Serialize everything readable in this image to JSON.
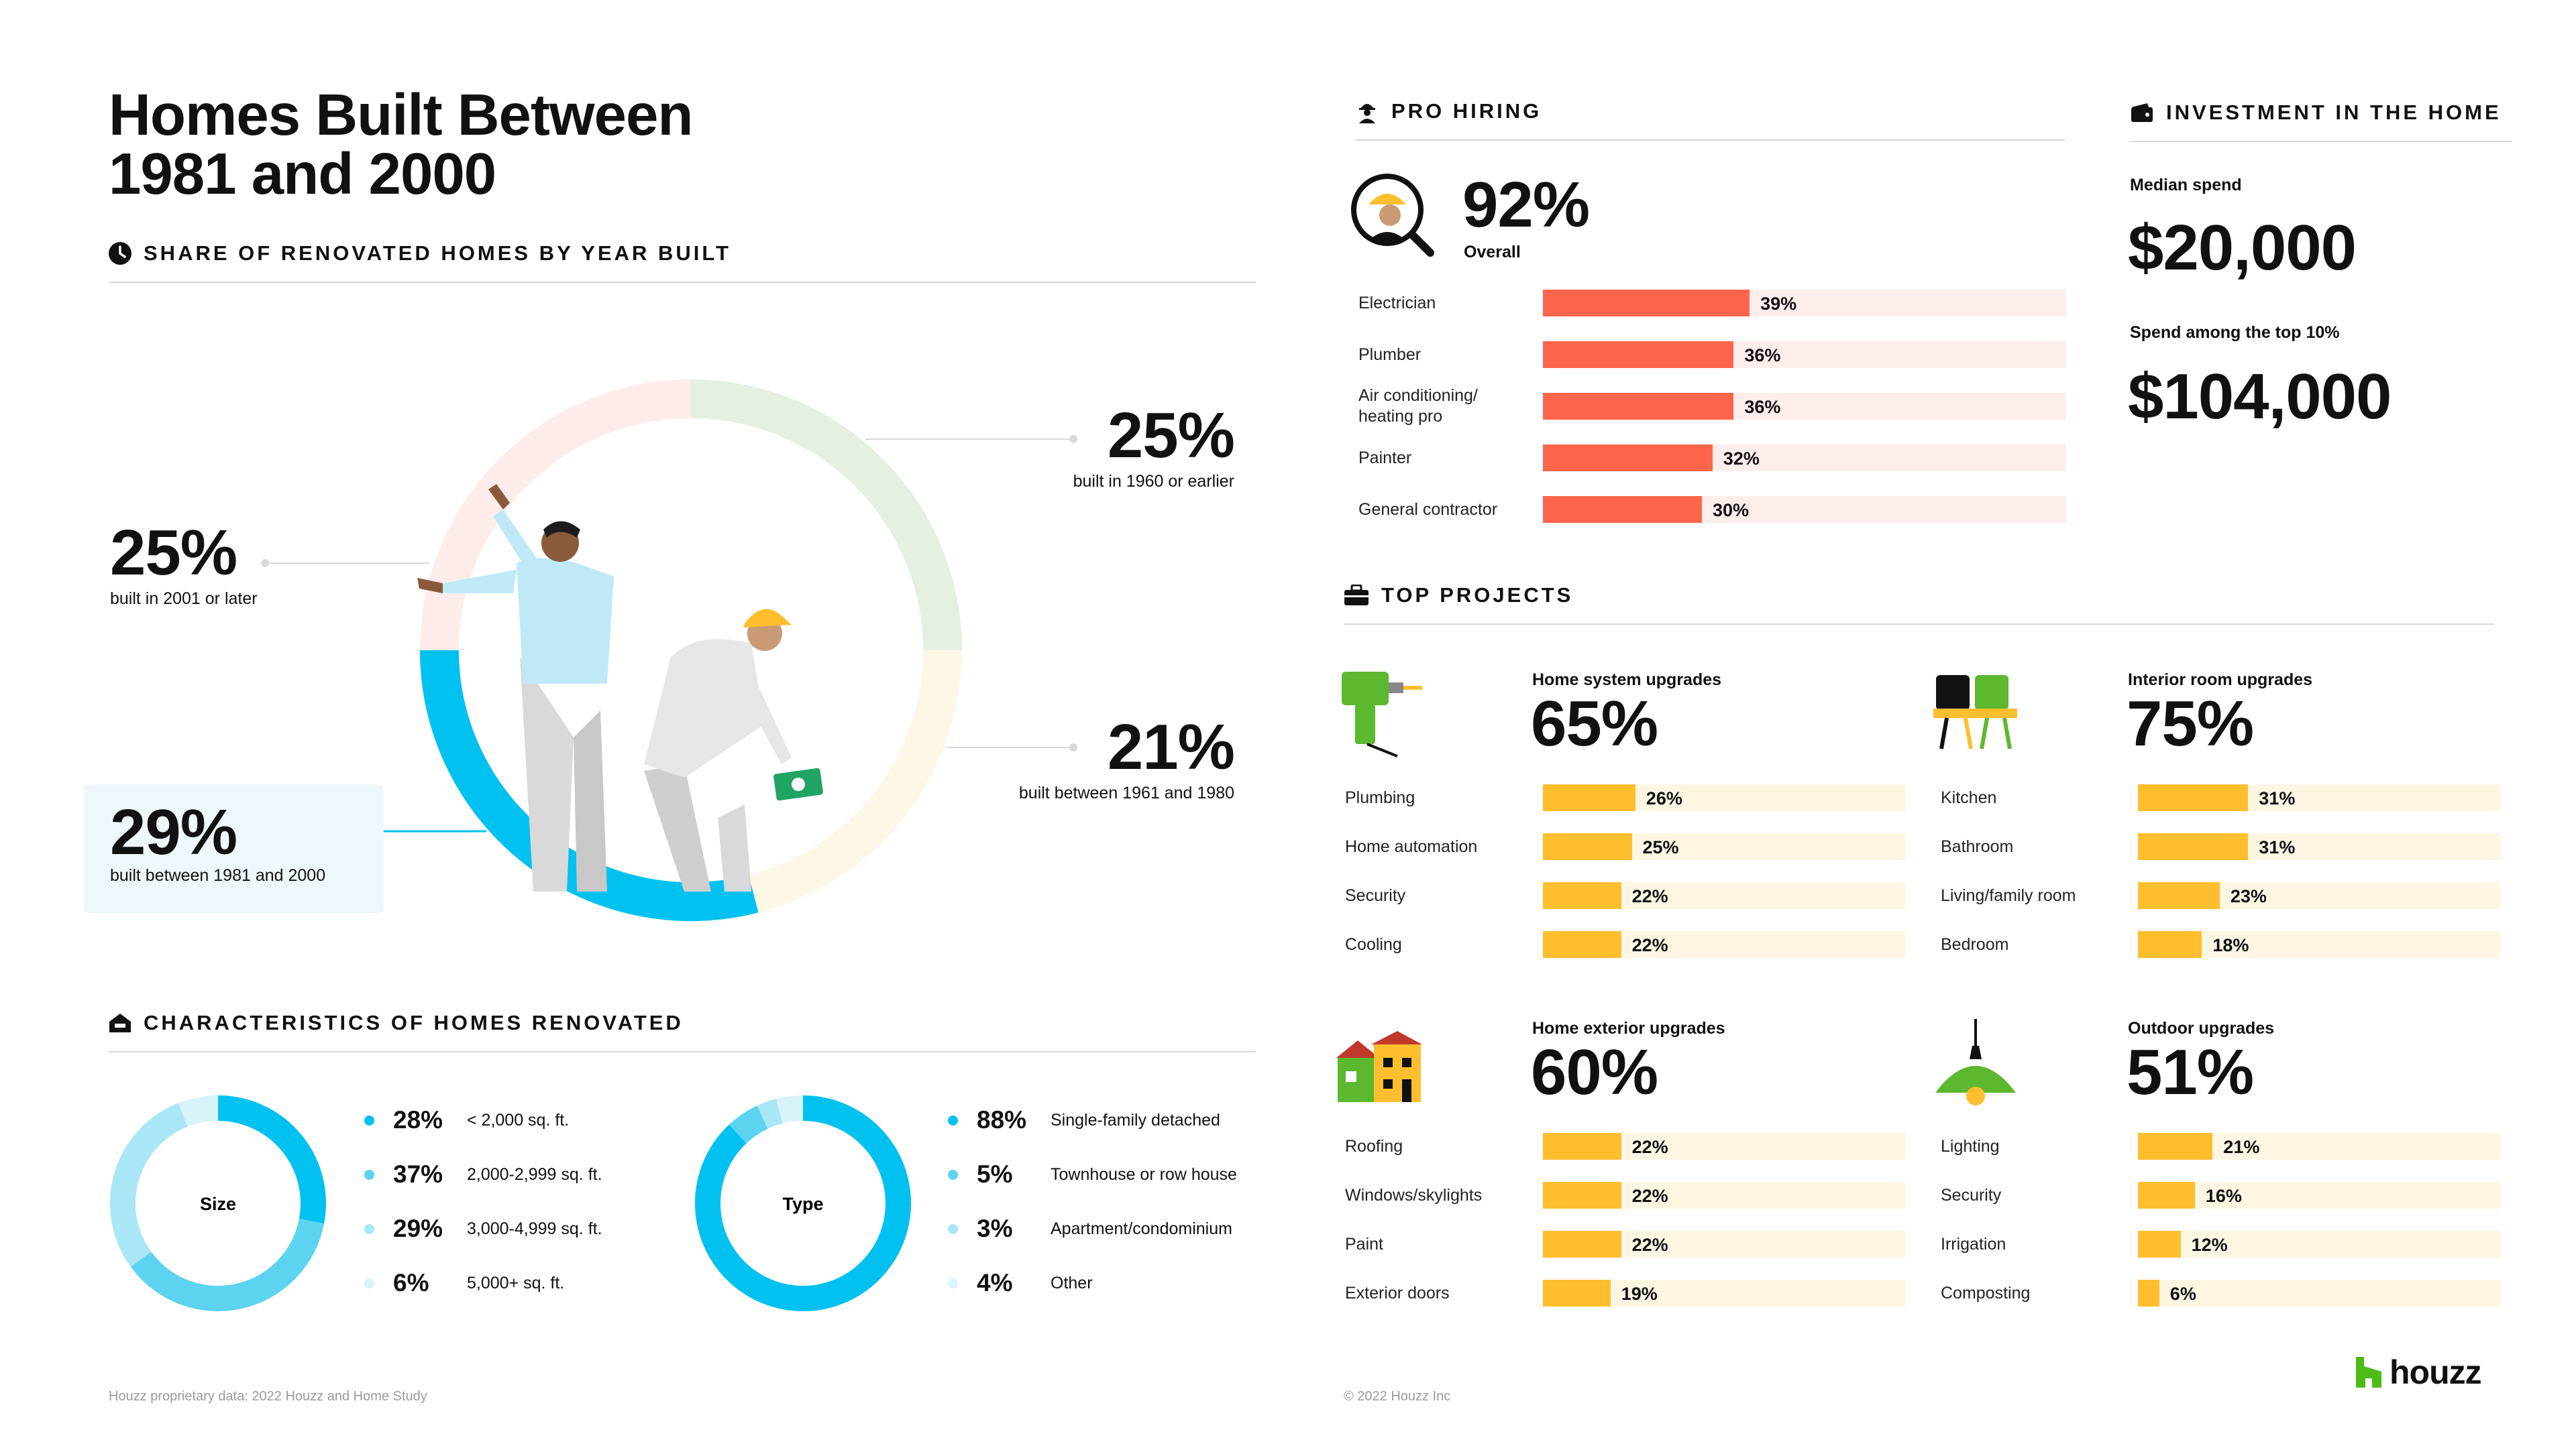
{
  "title_line1": "Homes Built Between",
  "title_line2": "1981 and 2000",
  "share": {
    "heading": "Share of renovated homes by year built",
    "callouts": [
      {
        "value": "25%",
        "label": "built in 1960 or earlier"
      },
      {
        "value": "25%",
        "label": "built in 2001 or later"
      },
      {
        "value": "21%",
        "label": "built between 1961 and 1980"
      },
      {
        "value": "29%",
        "label": "built between 1981 and 2000"
      }
    ],
    "chart_data": {
      "type": "pie",
      "labels": [
        "built in 1960 or earlier",
        "built between 1961 and 1980",
        "built between 1981 and 2000",
        "built in 2001 or later"
      ],
      "values": [
        25,
        21,
        29,
        25
      ],
      "colors": [
        "#e5f0e0",
        "#fdf7e6",
        "#00c1f0",
        "#fdecea"
      ]
    }
  },
  "characteristics": {
    "heading": "Characteristics of homes renovated",
    "size": {
      "center_label": "Size",
      "items": [
        {
          "value": "28%",
          "label": "< 2,000 sq. ft.",
          "color": "#00c1f0"
        },
        {
          "value": "37%",
          "label": "2,000-2,999 sq. ft.",
          "color": "#5dd3f2"
        },
        {
          "value": "29%",
          "label": "3,000-4,999 sq. ft.",
          "color": "#a9e6f6"
        },
        {
          "value": "6%",
          "label": "5,000+ sq. ft.",
          "color": "#d9f3fa"
        }
      ]
    },
    "type": {
      "center_label": "Type",
      "items": [
        {
          "value": "88%",
          "label": "Single-family detached",
          "color": "#00c1f0"
        },
        {
          "value": "5%",
          "label": "Townhouse or row house",
          "color": "#5dd3f2"
        },
        {
          "value": "3%",
          "label": "Apartment/condominium",
          "color": "#a9e6f6"
        },
        {
          "value": "4%",
          "label": "Other",
          "color": "#d9f3fa"
        }
      ]
    },
    "chart_data": [
      {
        "type": "pie",
        "title": "Size",
        "labels": [
          "< 2,000 sq. ft.",
          "2,000-2,999 sq. ft.",
          "3,000-4,999 sq. ft.",
          "5,000+ sq. ft."
        ],
        "values": [
          28,
          37,
          29,
          6
        ]
      },
      {
        "type": "pie",
        "title": "Type",
        "labels": [
          "Single-family detached",
          "Townhouse or row house",
          "Apartment/condominium",
          "Other"
        ],
        "values": [
          88,
          5,
          3,
          4
        ]
      }
    ]
  },
  "pro_hiring": {
    "heading": "Pro hiring",
    "overall_value": "92%",
    "overall_label": "Overall",
    "bar_color": "#ff654a",
    "track_color": "#fdeeec",
    "chart_data": {
      "type": "bar",
      "categories": [
        "Electrician",
        "Plumber",
        "Air conditioning/ heating pro",
        "Painter",
        "General contractor"
      ],
      "values": [
        39,
        36,
        36,
        32,
        30
      ],
      "labels_display": [
        "Electrician",
        "Plumber",
        "Air conditioning/\nheating pro",
        "Painter",
        "General contractor"
      ]
    }
  },
  "investment": {
    "heading": "Investment in the home",
    "median_label": "Median spend",
    "median_value": "$20,000",
    "top_label": "Spend among the top 10%",
    "top_value": "$104,000"
  },
  "top_projects": {
    "heading": "Top projects",
    "bar_color": "#ffbe2e",
    "track_color": "#fdf6e3",
    "groups": [
      {
        "title": "Home system upgrades",
        "value": "65%",
        "icon": "drill-icon",
        "chart_data": {
          "type": "bar",
          "categories": [
            "Plumbing",
            "Home automation",
            "Security",
            "Cooling"
          ],
          "values": [
            26,
            25,
            22,
            22
          ]
        }
      },
      {
        "title": "Interior room upgrades",
        "value": "75%",
        "icon": "chairs-icon",
        "chart_data": {
          "type": "bar",
          "categories": [
            "Kitchen",
            "Bathroom",
            "Living/family room",
            "Bedroom"
          ],
          "values": [
            31,
            31,
            23,
            18
          ]
        }
      },
      {
        "title": "Home exterior upgrades",
        "value": "60%",
        "icon": "houses-icon",
        "chart_data": {
          "type": "bar",
          "categories": [
            "Roofing",
            "Windows/skylights",
            "Paint",
            "Exterior doors"
          ],
          "values": [
            22,
            22,
            22,
            19
          ]
        }
      },
      {
        "title": "Outdoor upgrades",
        "value": "51%",
        "icon": "lamp-icon",
        "chart_data": {
          "type": "bar",
          "categories": [
            "Lighting",
            "Security",
            "Irrigation",
            "Composting"
          ],
          "values": [
            21,
            16,
            12,
            6
          ]
        }
      }
    ]
  },
  "footer": {
    "source": "Houzz proprietary data: 2022 Houzz and Home Study",
    "copyright": "© 2022 Houzz Inc",
    "brand": "houzz"
  }
}
